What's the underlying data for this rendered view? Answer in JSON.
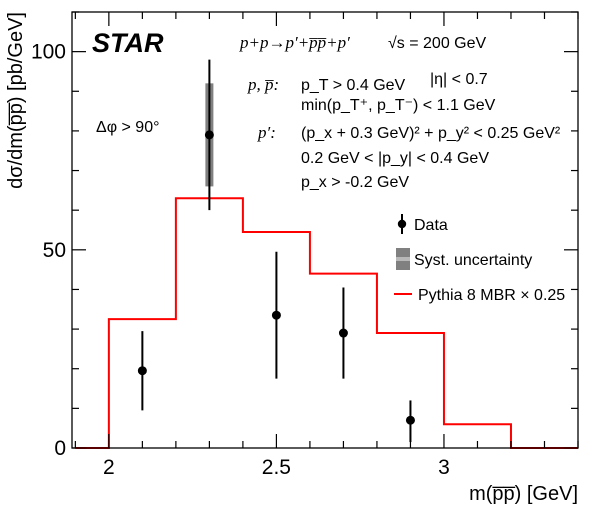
{
  "chart_data": {
    "type": "scatter",
    "title": "",
    "xlabel": "m(p̅p̅) [GeV]",
    "ylabel": "dσ/dm(p̅p̅) [pb/GeV]",
    "xlim": [
      1.89,
      3.4
    ],
    "ylim": [
      0,
      110
    ],
    "xticks": [
      2,
      2.5,
      3
    ],
    "xtick_labels": [
      "2",
      "2.5",
      "3"
    ],
    "yticks": [
      0,
      50,
      100
    ],
    "ytick_labels": [
      "0",
      "50",
      "100"
    ],
    "grid": false,
    "legend_position": "right",
    "series": [
      {
        "name": "Data",
        "kind": "points",
        "color": "#000000",
        "x": [
          2.1,
          2.3,
          2.5,
          2.7,
          2.9
        ],
        "y": [
          19.5,
          79,
          33.5,
          29,
          7
        ],
        "err_low": [
          10,
          19,
          16,
          11.5,
          5.5
        ],
        "err_high": [
          10,
          19,
          16,
          11.5,
          5
        ]
      },
      {
        "name": "Syst. uncertainty",
        "kind": "band",
        "color": "#808080",
        "x": [
          2.3
        ],
        "low": [
          66
        ],
        "high": [
          92
        ]
      },
      {
        "name": "Pythia 8 MBR × 0.25",
        "kind": "step",
        "color": "#ff0000",
        "edges": [
          1.9,
          2.0,
          2.2,
          2.4,
          2.6,
          2.8,
          3.0,
          3.2,
          3.4
        ],
        "values": [
          0,
          32.5,
          63,
          54.5,
          44,
          29,
          6,
          0
        ]
      }
    ],
    "annotations": {
      "logo": "STAR",
      "reaction": "p+p→p′+p̅p̅+p′",
      "energy": "√s = 200 GeV",
      "dphi": "Δφ > 90°",
      "pp_label": "p, p̅:",
      "pp_cut1": "p_T > 0.4 GeV",
      "pp_cut1_eta": "|η| < 0.7",
      "pp_cut2": "min(p_T⁺, p_T⁻) < 1.1 GeV",
      "pprime_label": "p′:",
      "pprime_cut1": "(p_x + 0.3 GeV)² + p_y² < 0.25 GeV²",
      "pprime_cut2": "0.2 GeV < |p_y| < 0.4 GeV",
      "pprime_cut3": "p_x > -0.2 GeV"
    }
  }
}
